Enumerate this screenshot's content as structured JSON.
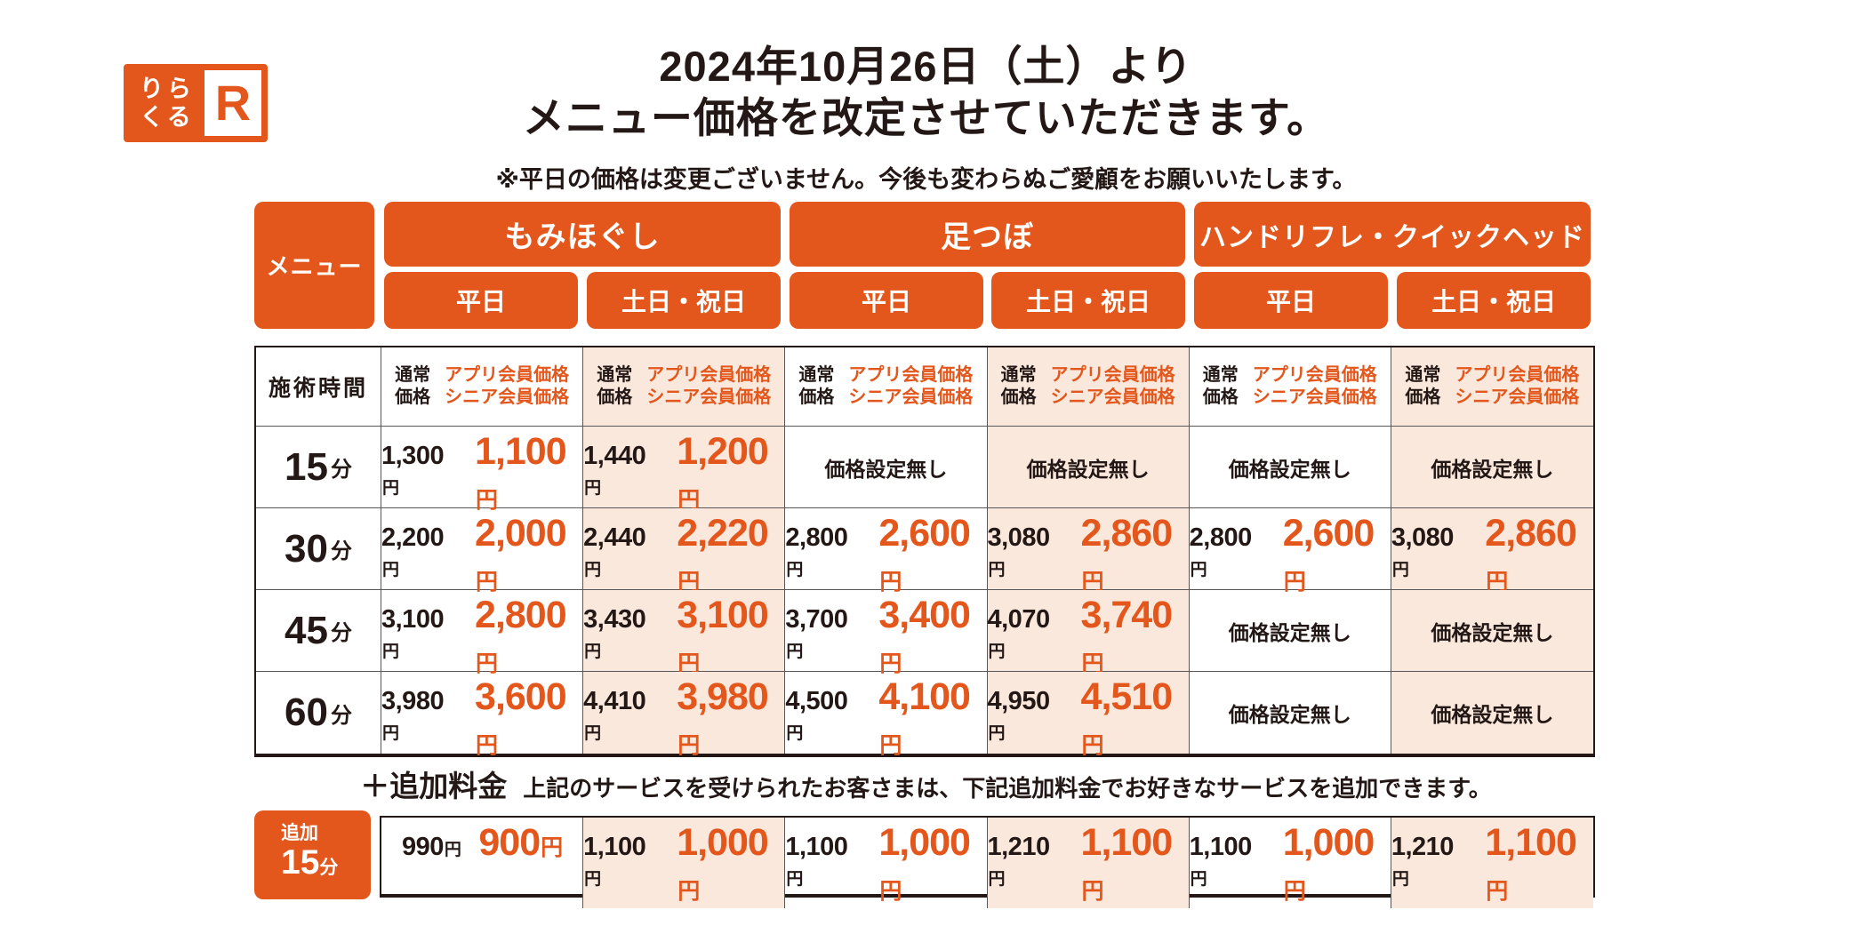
{
  "brand": {
    "logo_text_top": "りら",
    "logo_text_bottom": "くる",
    "logo_mark": "R"
  },
  "title": {
    "line1": "2024年10月26日（土）より",
    "line2": "メニュー価格を改定させていただきます。",
    "note": "※平日の価格は変更ございません。今後も変わらぬご愛顧をお願いいたします。"
  },
  "header": {
    "menu_label": "メニュー",
    "services": [
      "もみほぐし",
      "足つぼ",
      "ハンドリフレ・クイックヘッド"
    ],
    "weekday_label": "平日",
    "weekend_label": "土日・祝日"
  },
  "labels": {
    "time_header": "施術時間",
    "normal_price_l1": "通常",
    "normal_price_l2": "価格",
    "member_l1": "アプリ会員価格",
    "member_l2": "シニア会員価格",
    "yen": "円",
    "minute": "分",
    "addon_title": "＋追加料金",
    "addon_note": "上記のサービスを受けられたお客さまは、下記追加料金でお好きなサービスを追加できます。",
    "addon_badge_top": "追加",
    "addon_badge_time": "15"
  },
  "rows": [
    {
      "time": "15",
      "cells": [
        {
          "n": "1,300",
          "m": "1,100"
        },
        {
          "n": "1,440",
          "m": "1,200"
        },
        {
          "none": "価格設定無し"
        },
        {
          "none": "価格設定無し"
        },
        {
          "none": "価格設定無し"
        },
        {
          "none": "価格設定無し"
        }
      ]
    },
    {
      "time": "30",
      "cells": [
        {
          "n": "2,200",
          "m": "2,000"
        },
        {
          "n": "2,440",
          "m": "2,220"
        },
        {
          "n": "2,800",
          "m": "2,600"
        },
        {
          "n": "3,080",
          "m": "2,860"
        },
        {
          "n": "2,800",
          "m": "2,600"
        },
        {
          "n": "3,080",
          "m": "2,860"
        }
      ]
    },
    {
      "time": "45",
      "cells": [
        {
          "n": "3,100",
          "m": "2,800"
        },
        {
          "n": "3,430",
          "m": "3,100"
        },
        {
          "n": "3,700",
          "m": "3,400"
        },
        {
          "n": "4,070",
          "m": "3,740"
        },
        {
          "none": "価格設定無し"
        },
        {
          "none": "価格設定無し"
        }
      ]
    },
    {
      "time": "60",
      "cells": [
        {
          "n": "3,980",
          "m": "3,600"
        },
        {
          "n": "4,410",
          "m": "3,980"
        },
        {
          "n": "4,500",
          "m": "4,100"
        },
        {
          "n": "4,950",
          "m": "4,510"
        },
        {
          "none": "価格設定無し"
        },
        {
          "none": "価格設定無し"
        }
      ]
    }
  ],
  "addon_row": [
    {
      "n": "990",
      "m": "900"
    },
    {
      "n": "1,100",
      "m": "1,000"
    },
    {
      "n": "1,100",
      "m": "1,000"
    },
    {
      "n": "1,210",
      "m": "1,100"
    },
    {
      "n": "1,100",
      "m": "1,000"
    },
    {
      "n": "1,210",
      "m": "1,100"
    }
  ],
  "colors": {
    "brand_orange": "#E3571C",
    "weekend_bg": "#FAE8DC",
    "text_dark": "#231815",
    "price_orange": "#E3571C",
    "grid_line": "#595757"
  }
}
